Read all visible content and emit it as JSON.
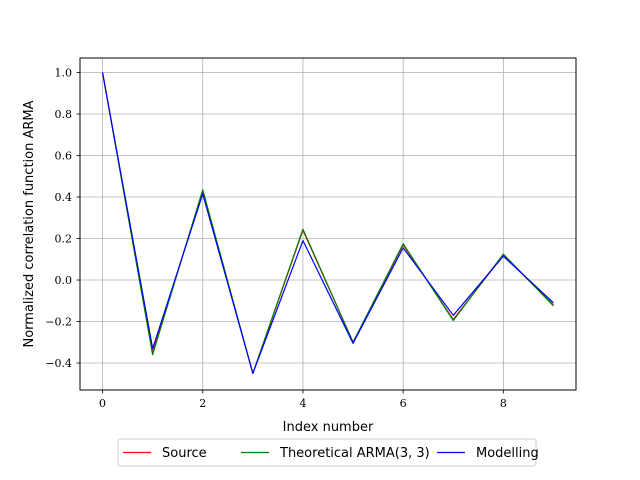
{
  "chart_data": {
    "type": "line",
    "title": "",
    "xlabel": "Index number",
    "ylabel": "Normalized correlation function ARMA",
    "xlim": [
      -0.45,
      9.45
    ],
    "ylim": [
      -0.53,
      1.07
    ],
    "xticks": [
      0,
      2,
      4,
      6,
      8
    ],
    "yticks": [
      -0.4,
      -0.2,
      0.0,
      0.2,
      0.4,
      0.6,
      0.8,
      1.0
    ],
    "xtick_labels": [
      "0",
      "2",
      "4",
      "6",
      "8"
    ],
    "ytick_labels": [
      "−0.4",
      "−0.2",
      "0.0",
      "0.2",
      "0.4",
      "0.6",
      "0.8",
      "1.0"
    ],
    "grid": true,
    "legend_position": "bottom-center-outside",
    "x": [
      0,
      1,
      2,
      3,
      4,
      5,
      6,
      7,
      8,
      9
    ],
    "series": [
      {
        "name": "Source",
        "color": "#ff0000",
        "values": [
          1.0,
          -0.35,
          0.43,
          -0.45,
          0.24,
          -0.3,
          0.17,
          -0.19,
          0.12,
          -0.12
        ]
      },
      {
        "name": "Theoretical ARMA(3, 3)",
        "color": "#008000",
        "values": [
          1.0,
          -0.36,
          0.435,
          -0.45,
          0.245,
          -0.3,
          0.175,
          -0.195,
          0.125,
          -0.125
        ]
      },
      {
        "name": "Modelling",
        "color": "#0000ff",
        "values": [
          1.0,
          -0.33,
          0.415,
          -0.45,
          0.19,
          -0.305,
          0.155,
          -0.17,
          0.115,
          -0.11
        ]
      }
    ]
  }
}
